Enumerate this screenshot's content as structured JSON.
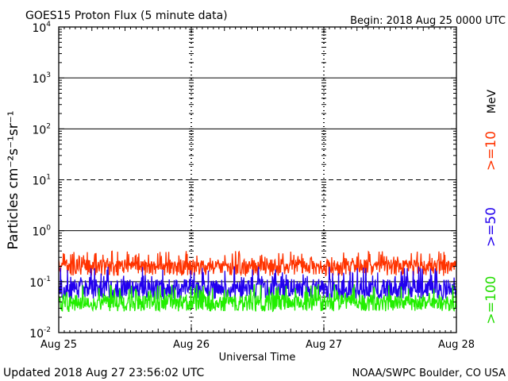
{
  "header": {
    "title": "GOES15 Proton Flux (5 minute data)",
    "begin": "Begin: 2018 Aug 25 0000 UTC"
  },
  "footer": {
    "updated": "Updated 2018 Aug 27 23:56:02 UTC",
    "credit": "NOAA/SWPC Boulder, CO USA"
  },
  "colors": {
    "ge10": "#ff3300",
    "ge50": "#2200ee",
    "ge100": "#22ee00",
    "axis": "#000000",
    "background": "#ffffff"
  },
  "chart_data": {
    "type": "line",
    "title": "GOES15 Proton Flux (5 minute data)",
    "xlabel": "Universal Time",
    "ylabel": "Particles cm⁻²s⁻¹sr⁻¹",
    "unit_label": "MeV",
    "y_scale": "log",
    "ylim": [
      0.01,
      10000
    ],
    "y_ticks": [
      {
        "value": 0.01,
        "base": "10",
        "exp": "-2"
      },
      {
        "value": 0.1,
        "base": "10",
        "exp": "-1"
      },
      {
        "value": 1,
        "base": "10",
        "exp": "0"
      },
      {
        "value": 10,
        "base": "10",
        "exp": "1"
      },
      {
        "value": 100,
        "base": "10",
        "exp": "2"
      },
      {
        "value": 1000,
        "base": "10",
        "exp": "3"
      },
      {
        "value": 10000,
        "base": "10",
        "exp": "4"
      }
    ],
    "x_start": "2018-08-25T00:00Z",
    "x_end": "2018-08-28T00:00Z",
    "x_ticks": [
      "Aug 25",
      "Aug 26",
      "Aug 27",
      "Aug 28"
    ],
    "reference_lines": [
      {
        "value": 10,
        "style": "dashed"
      },
      {
        "value": 1,
        "style": "solid"
      }
    ],
    "grid": "solid horizontal lines at each decade; dashed vertical day dividers",
    "legend_position": "right, rotated",
    "series": [
      {
        "name": ">=10",
        "color": "#ff3300",
        "typical": 0.2,
        "min": 0.13,
        "max": 0.4
      },
      {
        "name": ">=50",
        "color": "#2200ee",
        "typical": 0.07,
        "min": 0.045,
        "max": 0.2
      },
      {
        "name": ">=100",
        "color": "#22ee00",
        "typical": 0.038,
        "min": 0.026,
        "max": 0.09
      }
    ]
  }
}
